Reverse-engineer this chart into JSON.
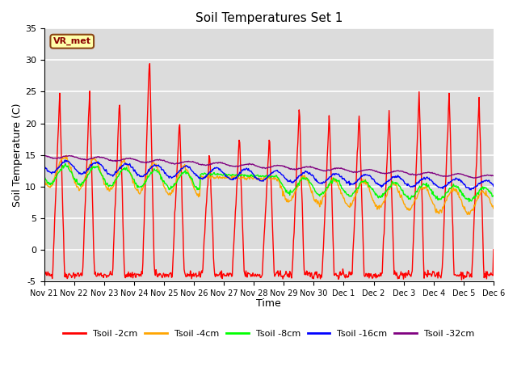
{
  "title": "Soil Temperatures Set 1",
  "xlabel": "Time",
  "ylabel": "Soil Temperature (C)",
  "ylim": [
    -5,
    35
  ],
  "background_color": "#dcdcdc",
  "grid_color": "white",
  "annotation_text": "VR_met",
  "annotation_facecolor": "#ffffaa",
  "annotation_edgecolor": "#8B4513",
  "tick_labels": [
    "Nov 21",
    "Nov 22",
    "Nov 23",
    "Nov 24",
    "Nov 25",
    "Nov 26",
    "Nov 27",
    "Nov 28",
    "Nov 29",
    "Nov 30",
    "Dec 1",
    "Dec 2",
    "Dec 3",
    "Dec 4",
    "Dec 5",
    "Dec 6"
  ],
  "series_colors": [
    "red",
    "orange",
    "lime",
    "blue",
    "purple"
  ],
  "series_names": [
    "Tsoil -2cm",
    "Tsoil -4cm",
    "Tsoil -8cm",
    "Tsoil -16cm",
    "Tsoil -32cm"
  ]
}
